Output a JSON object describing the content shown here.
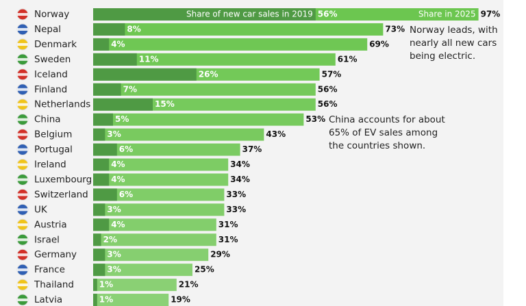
{
  "chart_data": {
    "type": "bar",
    "categories": [
      "Norway",
      "Nepal",
      "Denmark",
      "Sweden",
      "Iceland",
      "Finland",
      "Netherlands",
      "China",
      "Belgium",
      "Portugal",
      "Ireland",
      "Luxembourg",
      "Switzerland",
      "UK",
      "Austria",
      "Israel",
      "Germany",
      "France",
      "Thailand",
      "Latvia"
    ],
    "series": [
      {
        "name": "Share in 2025",
        "color": "#6cc650",
        "values": [
          97,
          73,
          69,
          61,
          57,
          56,
          56,
          53,
          43,
          37,
          34,
          34,
          33,
          33,
          31,
          31,
          29,
          25,
          21,
          19
        ],
        "value_labels": [
          "97%",
          "73%",
          "69%",
          "61%",
          "57%",
          "56%",
          "56%",
          "53%",
          "43%",
          "37%",
          "34%",
          "34%",
          "33%",
          "33%",
          "31%",
          "31%",
          "29%",
          "25%",
          "21%",
          "19%"
        ]
      },
      {
        "name": "Share of new car sales in 2019",
        "color": "#4f9a44",
        "values": [
          56,
          8,
          4,
          11,
          26,
          7,
          15,
          5,
          3,
          6,
          4,
          4,
          6,
          3,
          4,
          2,
          3,
          3,
          1,
          1
        ],
        "value_labels": [
          "56%",
          "8%",
          "4%",
          "11%",
          "26%",
          "7%",
          "15%",
          "5%",
          "3%",
          "6%",
          "4%",
          "4%",
          "6%",
          "3%",
          "4%",
          "2%",
          "3%",
          "3%",
          "1%",
          "1%"
        ]
      }
    ],
    "annotations": [
      "Norway leads, with nearly all new cars being electric.",
      "China accounts for about 65% of EV sales among the countries shown."
    ]
  }
}
